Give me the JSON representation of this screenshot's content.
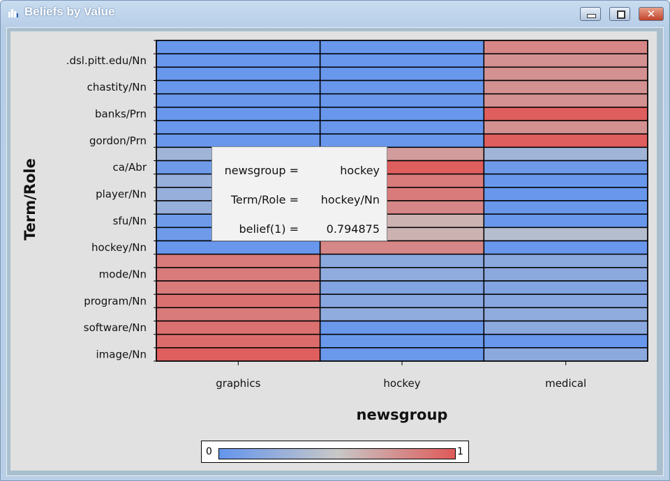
{
  "window": {
    "title": "Beliefs by Value",
    "minimize_icon": "minimize-icon",
    "maximize_icon": "maximize-icon",
    "close_icon": "close-icon",
    "app_icon": "bar-chart-icon"
  },
  "tooltip": {
    "rows": [
      {
        "key": "newsgroup =",
        "value": "hockey"
      },
      {
        "key": "Term/Role =",
        "value": "hockey/Nn"
      },
      {
        "key": "belief(1) =",
        "value": "0.794875"
      }
    ]
  },
  "legend": {
    "min_label": "0",
    "max_label": "1",
    "low_color": "#6495ed",
    "mid_color": "#c8c8c8",
    "high_color": "#e05a5a"
  },
  "chart_data": {
    "type": "heatmap",
    "title": "Beliefs by Value",
    "xlabel": "newsgroup",
    "ylabel": "Term/Role",
    "categories": [
      "graphics",
      "hockey",
      "medical"
    ],
    "y_tick_labels": [
      ".dsl.pitt.edu/Nn",
      "chastity/Nn",
      "banks/Prn",
      "gordon/Prn",
      "ca/Abr",
      "player/Nn",
      "sfu/Nn",
      "hockey/Nn",
      "mode/Nn",
      "program/Nn",
      "software/Nn",
      "image/Nn"
    ],
    "value_range": [
      0,
      1
    ],
    "values": [
      [
        0.02,
        0.02,
        0.8
      ],
      [
        0.02,
        0.02,
        0.75
      ],
      [
        0.02,
        0.02,
        0.75
      ],
      [
        0.02,
        0.02,
        0.75
      ],
      [
        0.02,
        0.02,
        0.75
      ],
      [
        0.02,
        0.02,
        0.98
      ],
      [
        0.02,
        0.02,
        0.75
      ],
      [
        0.02,
        0.02,
        0.98
      ],
      [
        0.3,
        0.7,
        0.3
      ],
      [
        0.05,
        0.98,
        0.05
      ],
      [
        0.25,
        0.85,
        0.02
      ],
      [
        0.25,
        0.85,
        0.02
      ],
      [
        0.25,
        0.8,
        0.02
      ],
      [
        0.05,
        0.6,
        0.02
      ],
      [
        0.05,
        0.6,
        0.4
      ],
      [
        0.02,
        0.794875,
        0.02
      ],
      [
        0.85,
        0.2,
        0.2
      ],
      [
        0.85,
        0.22,
        0.2
      ],
      [
        0.85,
        0.15,
        0.15
      ],
      [
        0.9,
        0.18,
        0.18
      ],
      [
        0.85,
        0.22,
        0.22
      ],
      [
        0.9,
        0.03,
        0.2
      ],
      [
        0.92,
        0.03,
        0.02
      ],
      [
        0.98,
        0.03,
        0.2
      ]
    ],
    "colorscale": [
      "#6495ed",
      "#c8c8c8",
      "#e05a5a"
    ],
    "legend_placement": "bottom"
  }
}
